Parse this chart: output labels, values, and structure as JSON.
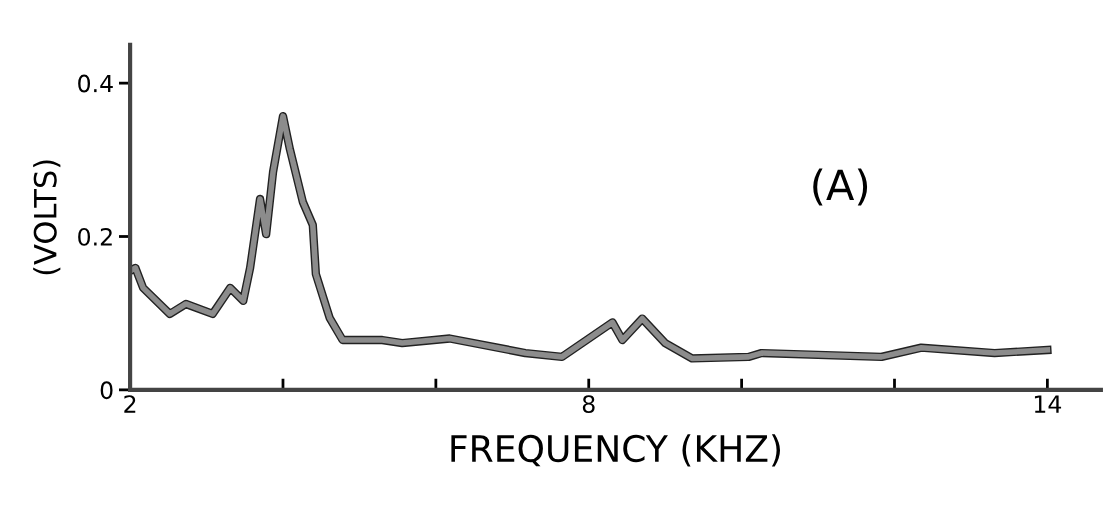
{
  "chart_data": {
    "type": "line",
    "xlabel": "FREQUENCY (KHZ)",
    "ylabel": "(VOLTS)",
    "annotations": [
      "(A)"
    ],
    "x": [
      2.0,
      2.07,
      2.17,
      2.52,
      2.73,
      3.08,
      3.31,
      3.48,
      3.57,
      3.7,
      3.78,
      3.87,
      4.0,
      4.09,
      4.26,
      4.39,
      4.43,
      4.61,
      4.78,
      5.3,
      5.56,
      6.18,
      7.17,
      7.65,
      8.31,
      8.44,
      8.7,
      9.0,
      9.35,
      10.09,
      10.26,
      11.83,
      12.35,
      13.31,
      14.0
    ],
    "series": [
      {
        "color": "#8c8c8c",
        "values": [
          0.155,
          0.159,
          0.133,
          0.099,
          0.112,
          0.099,
          0.133,
          0.116,
          0.159,
          0.249,
          0.203,
          0.284,
          0.357,
          0.314,
          0.245,
          0.215,
          0.151,
          0.094,
          0.065,
          0.065,
          0.061,
          0.067,
          0.048,
          0.043,
          0.088,
          0.065,
          0.093,
          0.061,
          0.041,
          0.043,
          0.048,
          0.043,
          0.055,
          0.048,
          0.052
        ]
      }
    ],
    "xlim": [
      2,
      14.7
    ],
    "ylim": [
      0,
      0.45
    ],
    "xticks": [
      2,
      {
        "value": 4,
        "label": null
      },
      {
        "value": 6,
        "label": null
      },
      8,
      {
        "value": 10,
        "label": null
      },
      {
        "value": 12,
        "label": null
      },
      14
    ],
    "yticks": [
      0,
      0.2,
      0.4
    ],
    "grid": false,
    "marker": "none",
    "line_style": "solid"
  }
}
